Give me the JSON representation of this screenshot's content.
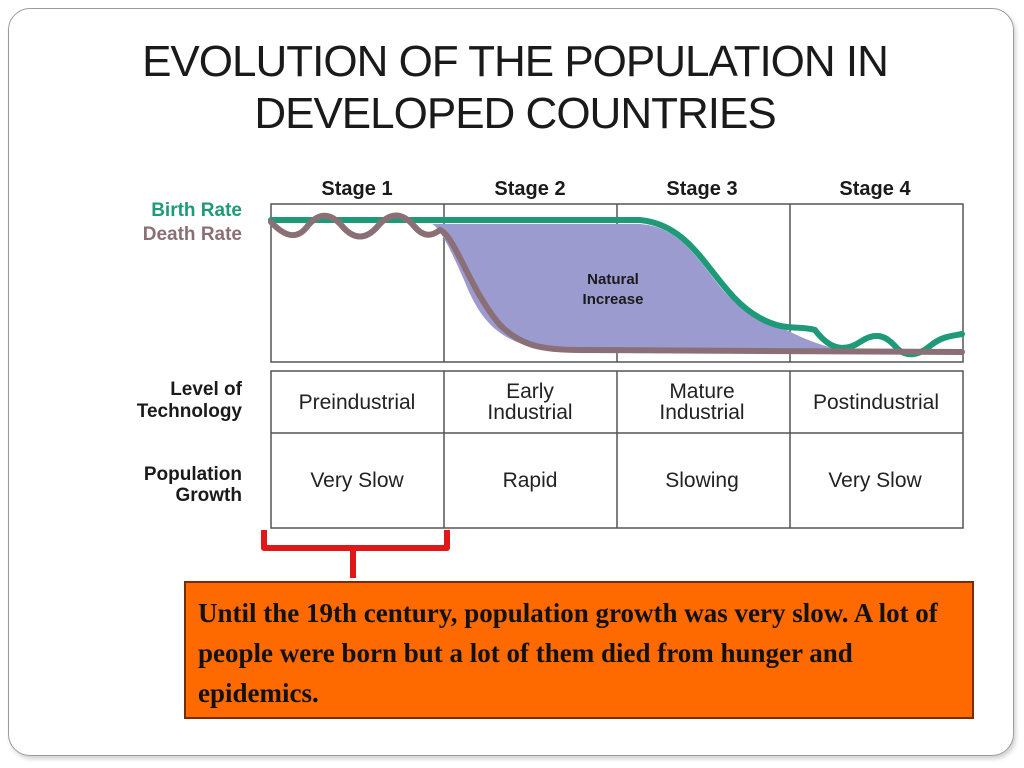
{
  "slide": {
    "title_line1": "EVOLUTION OF THE POPULATION IN",
    "title_line2": "DEVELOPED COUNTRIES"
  },
  "diagram": {
    "stages": [
      "Stage 1",
      "Stage 2",
      "Stage 3",
      "Stage 4"
    ],
    "legend": {
      "birth_rate": "Birth Rate",
      "death_rate": "Death Rate",
      "birth_rate_color": "#1f9a78",
      "death_rate_color": "#8a7076",
      "natural_increase_color": "#9c9bd0"
    },
    "area_label_line1": "Natural",
    "area_label_line2": "Increase",
    "row_labels": {
      "technology_line1": "Level of",
      "technology_line2": "Technology",
      "growth_line1": "Population",
      "growth_line2": "Growth"
    },
    "technology": [
      {
        "line1": "Preindustrial",
        "line2": ""
      },
      {
        "line1": "Early",
        "line2": "Industrial"
      },
      {
        "line1": "Mature",
        "line2": "Industrial"
      },
      {
        "line1": "Postindustrial",
        "line2": ""
      }
    ],
    "growth": [
      "Very Slow",
      "Rapid",
      "Slowing",
      "Very Slow"
    ],
    "bracket_color": "#e01818"
  },
  "note": {
    "text": "Until the 19th century, population growth was very slow. A lot of people were born but a lot of them died from hunger and epidemics.",
    "background": "#ff6a00"
  }
}
